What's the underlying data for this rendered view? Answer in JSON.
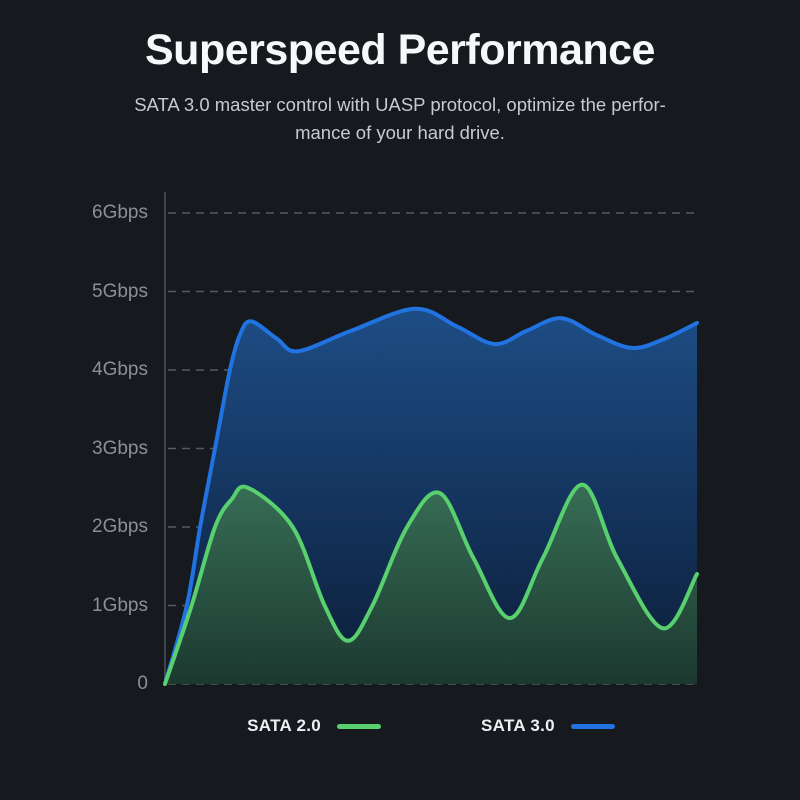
{
  "header": {
    "title": "Superspeed Performance",
    "subtitle_line1": "SATA 3.0 master control with UASP protocol, optimize the perfor-",
    "subtitle_line2": "mance of your hard drive."
  },
  "chart_data": {
    "type": "area",
    "y_unit": "Gbps",
    "ylim": [
      0,
      6
    ],
    "yticks": [
      {
        "label": "6Gbps",
        "value": 6
      },
      {
        "label": "5Gbps",
        "value": 5
      },
      {
        "label": "4Gbps",
        "value": 4
      },
      {
        "label": "3Gbps",
        "value": 3
      },
      {
        "label": "2Gbps",
        "value": 2
      },
      {
        "label": "1Gbps",
        "value": 1
      },
      {
        "label": "0",
        "value": 0
      }
    ],
    "grid": "horizontal-dashed",
    "legend_position": "bottom",
    "series": [
      {
        "name": "SATA 2.0",
        "line_color": "#58d06e",
        "fill_top": "#376d55",
        "fill_bottom": "#1c3930",
        "peak_gbps": 2.54,
        "points": [
          [
            0,
            0
          ],
          [
            0.05,
            1.0
          ],
          [
            0.094,
            2.0
          ],
          [
            0.125,
            2.35
          ],
          [
            0.156,
            2.5
          ],
          [
            0.24,
            2.0
          ],
          [
            0.3,
            1.0
          ],
          [
            0.344,
            0.55
          ],
          [
            0.39,
            1.0
          ],
          [
            0.455,
            2.0
          ],
          [
            0.517,
            2.43
          ],
          [
            0.58,
            1.6
          ],
          [
            0.648,
            0.84
          ],
          [
            0.71,
            1.6
          ],
          [
            0.784,
            2.54
          ],
          [
            0.85,
            1.6
          ],
          [
            0.936,
            0.71
          ],
          [
            1,
            1.4
          ]
        ]
      },
      {
        "name": "SATA 3.0",
        "line_color": "#2273e2",
        "fill_top": "#1d4d85",
        "fill_bottom": "#0c1d38",
        "peak_gbps": 4.78,
        "points": [
          [
            0,
            0
          ],
          [
            0.041,
            1.0
          ],
          [
            0.066,
            2.0
          ],
          [
            0.094,
            3.0
          ],
          [
            0.122,
            4.0
          ],
          [
            0.141,
            4.45
          ],
          [
            0.162,
            4.62
          ],
          [
            0.21,
            4.4
          ],
          [
            0.25,
            4.24
          ],
          [
            0.35,
            4.5
          ],
          [
            0.47,
            4.78
          ],
          [
            0.55,
            4.55
          ],
          [
            0.62,
            4.33
          ],
          [
            0.68,
            4.5
          ],
          [
            0.745,
            4.66
          ],
          [
            0.81,
            4.45
          ],
          [
            0.878,
            4.28
          ],
          [
            0.94,
            4.4
          ],
          [
            1,
            4.6
          ]
        ]
      }
    ]
  },
  "colors": {
    "background": "#16191d",
    "title_text": "#f7f8f9",
    "subtitle_text": "#c7cbd1",
    "tick_label": "#8b9097",
    "gridline": "#565b63",
    "axis_line": "#41464d"
  }
}
